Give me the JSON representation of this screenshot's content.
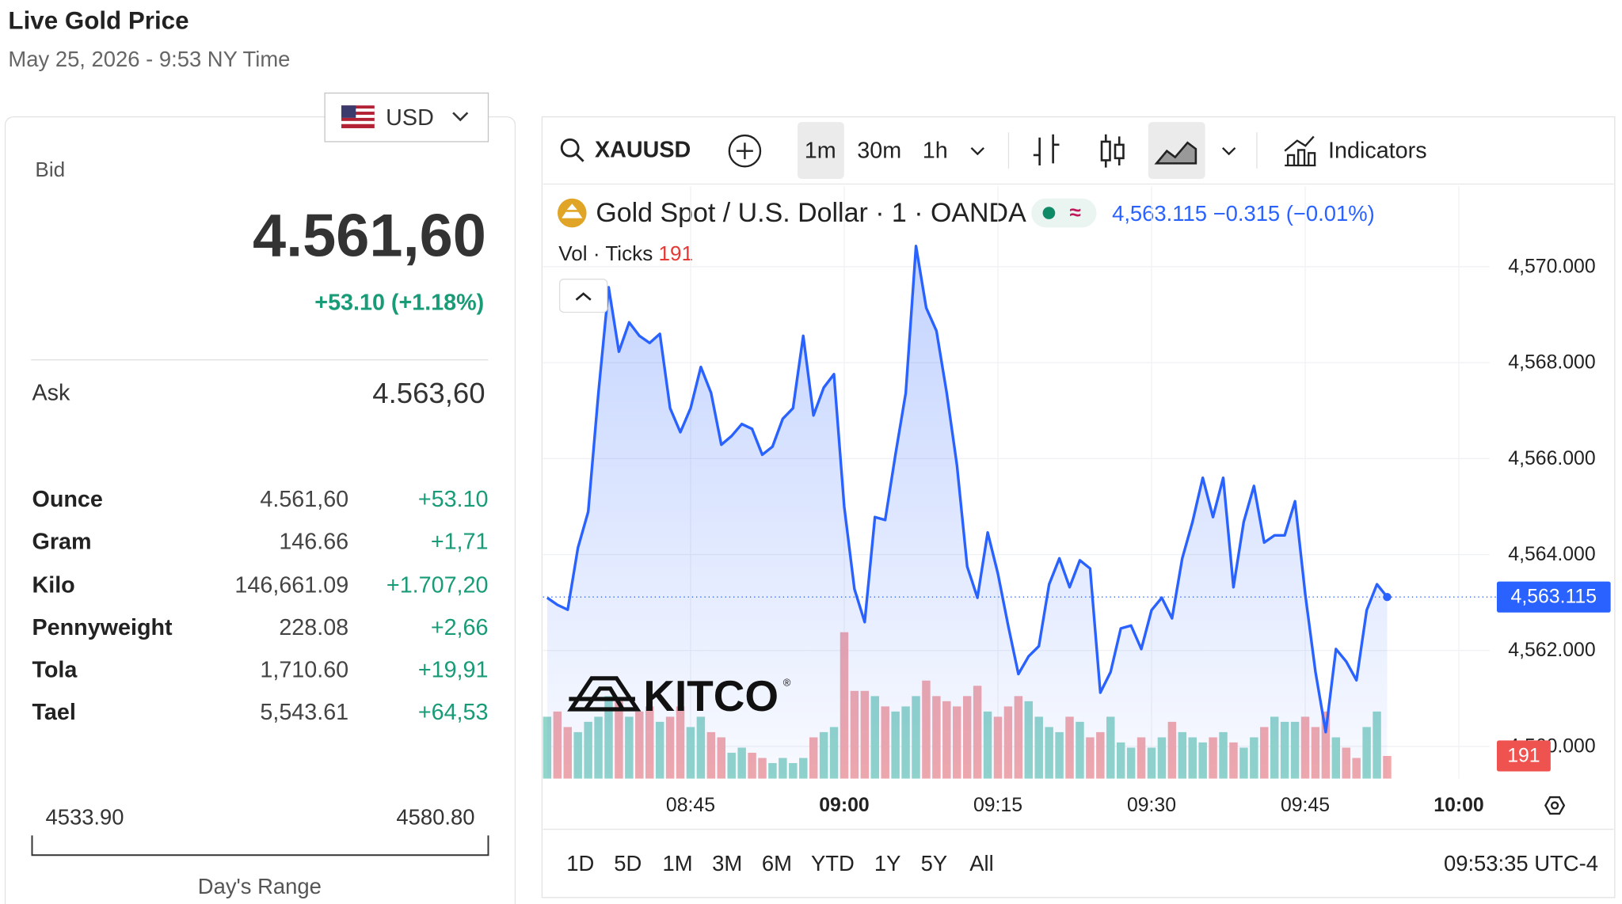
{
  "header": {
    "title": "Live Gold Price",
    "subtitle": "May 25, 2026 - 9:53 NY Time"
  },
  "panel": {
    "currency": "USD",
    "bid_label": "Bid",
    "bid": "4.561,60",
    "change": "+53.10 (+1.18%)",
    "ask_label": "Ask",
    "ask": "4.563,60",
    "rows": [
      [
        "Ounce",
        "4.561,60",
        "+53.10"
      ],
      [
        "Gram",
        "146.66",
        "+1,71"
      ],
      [
        "Kilo",
        "146,661.09",
        "+1.707,20"
      ],
      [
        "Pennyweight",
        "228.08",
        "+2,66"
      ],
      [
        "Tola",
        "1,710.60",
        "+19,91"
      ],
      [
        "Tael",
        "5,543.61",
        "+64,53"
      ]
    ],
    "range_low": "4533.90",
    "range_high": "4580.80",
    "range_label": "Day's Range"
  },
  "toolbar": {
    "symbol": "XAUUSD",
    "intervals": [
      "1m",
      "30m",
      "1h"
    ],
    "indicators": "Indicators"
  },
  "footer": {
    "ranges": [
      "1D",
      "5D",
      "1M",
      "3M",
      "6M",
      "YTD",
      "1Y",
      "5Y",
      "All"
    ],
    "clock": "09:53:35 UTC-4"
  },
  "watermark": "KITCO",
  "chart_data": {
    "type": "area",
    "legend": {
      "last": "4,563.115",
      "change": "−0.315",
      "change_pct": "(−0.01%)"
    },
    "x": [
      511,
      512,
      513,
      514,
      515,
      516,
      517,
      518,
      519,
      520,
      521,
      522,
      523,
      524,
      525,
      526,
      527,
      528,
      529,
      530,
      531,
      532,
      533,
      534,
      535,
      536,
      537,
      538,
      539,
      540,
      541,
      542,
      543,
      544,
      545,
      546,
      547,
      548,
      549,
      550,
      551,
      552,
      553,
      554,
      555,
      556,
      557,
      558,
      559,
      560,
      561,
      562,
      563,
      564,
      565,
      566,
      567,
      568,
      569,
      570,
      571,
      572,
      573,
      574,
      575,
      576,
      577,
      578,
      579,
      580,
      581,
      582,
      583,
      584,
      585,
      586,
      587,
      588,
      589,
      590,
      591,
      592,
      593
    ],
    "series": [
      {
        "name": "Gold Spot / U.S. Dollar · 1 · OANDA",
        "color": "#2962ff",
        "values": [
          4563.1,
          4562.95,
          4562.85,
          4564.14,
          4564.89,
          4567.37,
          4569.57,
          4568.23,
          4568.84,
          4568.56,
          4568.41,
          4568.6,
          4567.05,
          4566.55,
          4567.05,
          4567.91,
          4567.37,
          4566.29,
          4566.47,
          4566.72,
          4566.62,
          4566.08,
          4566.25,
          4566.83,
          4567.05,
          4568.56,
          4566.9,
          4567.48,
          4567.76,
          4565.0,
          4563.28,
          4562.59,
          4564.78,
          4564.72,
          4566.08,
          4567.37,
          4570.43,
          4569.14,
          4568.66,
          4567.37,
          4565.86,
          4563.75,
          4563.1,
          4564.46,
          4563.6,
          4562.52,
          4561.51,
          4561.88,
          4562.09,
          4563.38,
          4563.92,
          4563.32,
          4563.88,
          4563.71,
          4561.12,
          4561.55,
          4562.46,
          4562.52,
          4562.03,
          4562.84,
          4563.1,
          4562.67,
          4563.92,
          4564.68,
          4565.6,
          4564.78,
          4565.6,
          4563.32,
          4564.68,
          4565.43,
          4564.25,
          4564.4,
          4564.4,
          4565.11,
          4563.17,
          4561.55,
          4560.3,
          4562.03,
          4561.77,
          4561.38,
          4562.84,
          4563.38,
          4563.115
        ]
      },
      {
        "name": "Vol · Ticks",
        "type": "bar",
        "axis": "y2",
        "up_color": "#92d5ca",
        "down_color": "#f2a8ab",
        "values": [
          522,
          566,
          435,
          392,
          479,
          522,
          696,
          653,
          522,
          566,
          609,
          479,
          522,
          609,
          435,
          522,
          392,
          348,
          218,
          261,
          218,
          174,
          131,
          174,
          131,
          174,
          348,
          392,
          435,
          1235,
          740,
          740,
          696,
          609,
          566,
          609,
          696,
          827,
          696,
          653,
          609,
          696,
          783,
          566,
          522,
          609,
          696,
          653,
          522,
          435,
          392,
          522,
          479,
          348,
          392,
          522,
          305,
          261,
          348,
          261,
          348,
          479,
          392,
          348,
          305,
          348,
          392,
          305,
          261,
          348,
          435,
          522,
          479,
          479,
          522,
          435,
          566,
          348,
          261,
          174,
          435,
          566,
          191
        ]
      }
    ],
    "xlim": [
      510.6,
      603
    ],
    "xticks": [
      {
        "value": 525,
        "label": "08:45"
      },
      {
        "value": 540,
        "label": "09:00"
      },
      {
        "value": 555,
        "label": "09:15"
      },
      {
        "value": 570,
        "label": "09:30"
      },
      {
        "value": 585,
        "label": "09:45"
      },
      {
        "value": 600,
        "label": "10:00"
      }
    ],
    "ylim": [
      4559.33,
      4571.68
    ],
    "yticks": [
      {
        "value": 4560,
        "label": "4,560.000"
      },
      {
        "value": 4562,
        "label": "4,562.000"
      },
      {
        "value": 4564,
        "label": "4,564.000"
      },
      {
        "value": 4566,
        "label": "4,566.000"
      },
      {
        "value": 4568,
        "label": "4,568.000"
      },
      {
        "value": 4570,
        "label": "4,570.000"
      }
    ],
    "y2lim": [
      0,
      5000
    ],
    "price_tag": {
      "value": 4563.115,
      "label": "4,563.115"
    },
    "grid": true
  }
}
